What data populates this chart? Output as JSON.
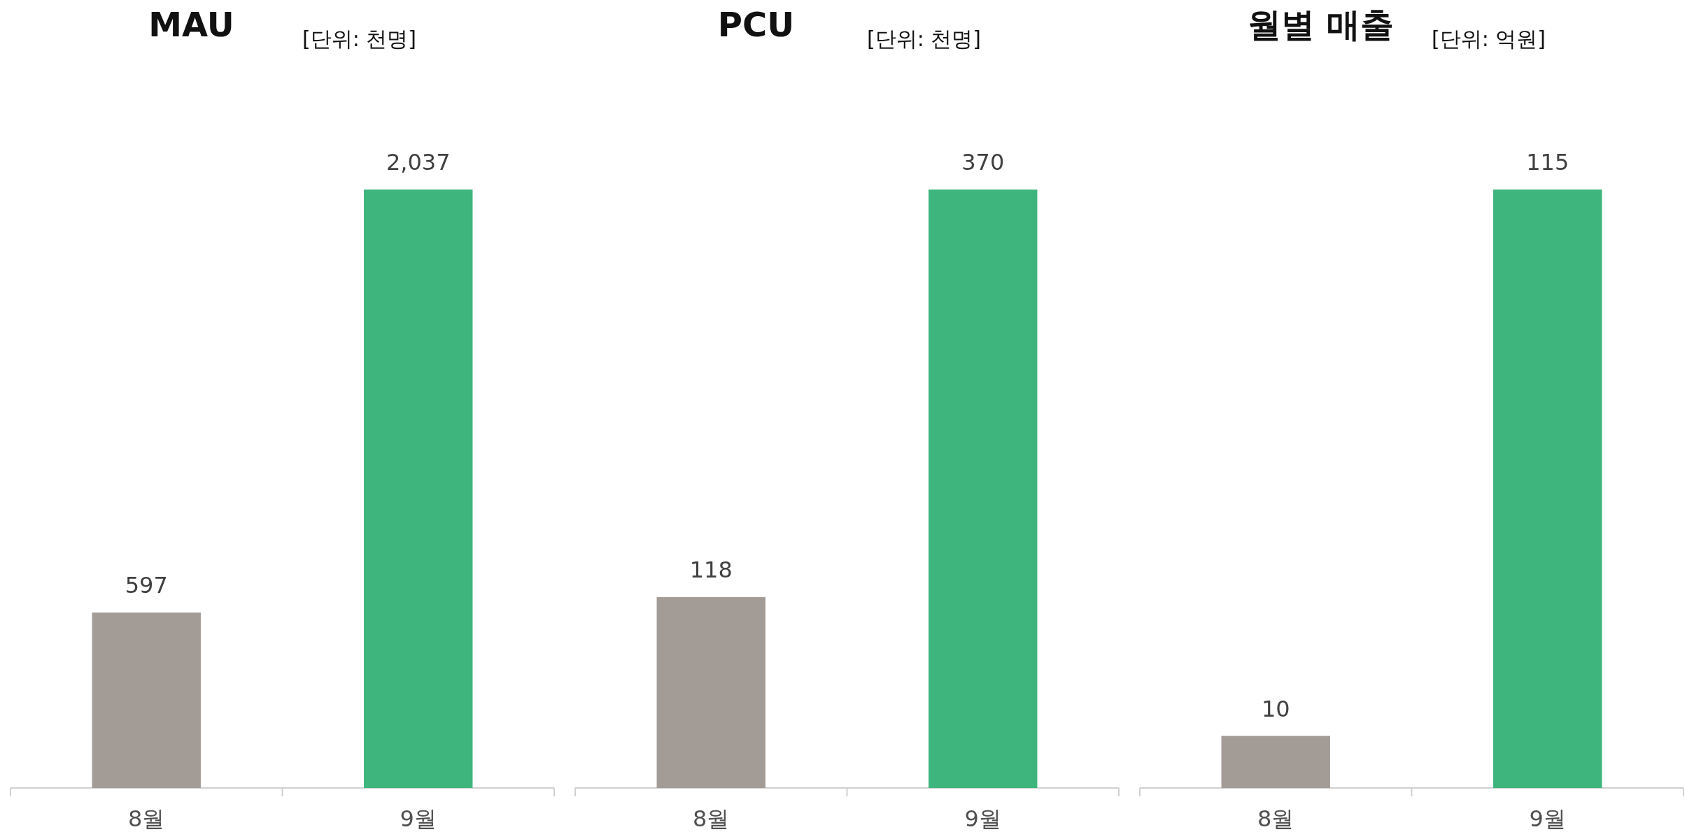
{
  "chart_data": [
    {
      "type": "bar",
      "title": "MAU",
      "subtitle": "[단위: 천명]",
      "categories": [
        "8월",
        "9월"
      ],
      "values": [
        597,
        2037
      ],
      "colors": [
        "#a39b95",
        "#3db57c"
      ],
      "value_labels": [
        "597",
        "2,037"
      ]
    },
    {
      "type": "bar",
      "title": "PCU",
      "subtitle": "[단위: 천명]",
      "categories": [
        "8월",
        "9월"
      ],
      "values": [
        118,
        370
      ],
      "colors": [
        "#a39b95",
        "#3db57c"
      ],
      "value_labels": [
        "118",
        "370"
      ]
    },
    {
      "type": "bar",
      "title": "월별 매출",
      "subtitle": "[단위: 억원]",
      "categories": [
        "8월",
        "9월"
      ],
      "values": [
        10,
        115
      ],
      "colors": [
        "#a39b95",
        "#3db57c"
      ],
      "value_labels": [
        "10",
        "115"
      ]
    }
  ]
}
